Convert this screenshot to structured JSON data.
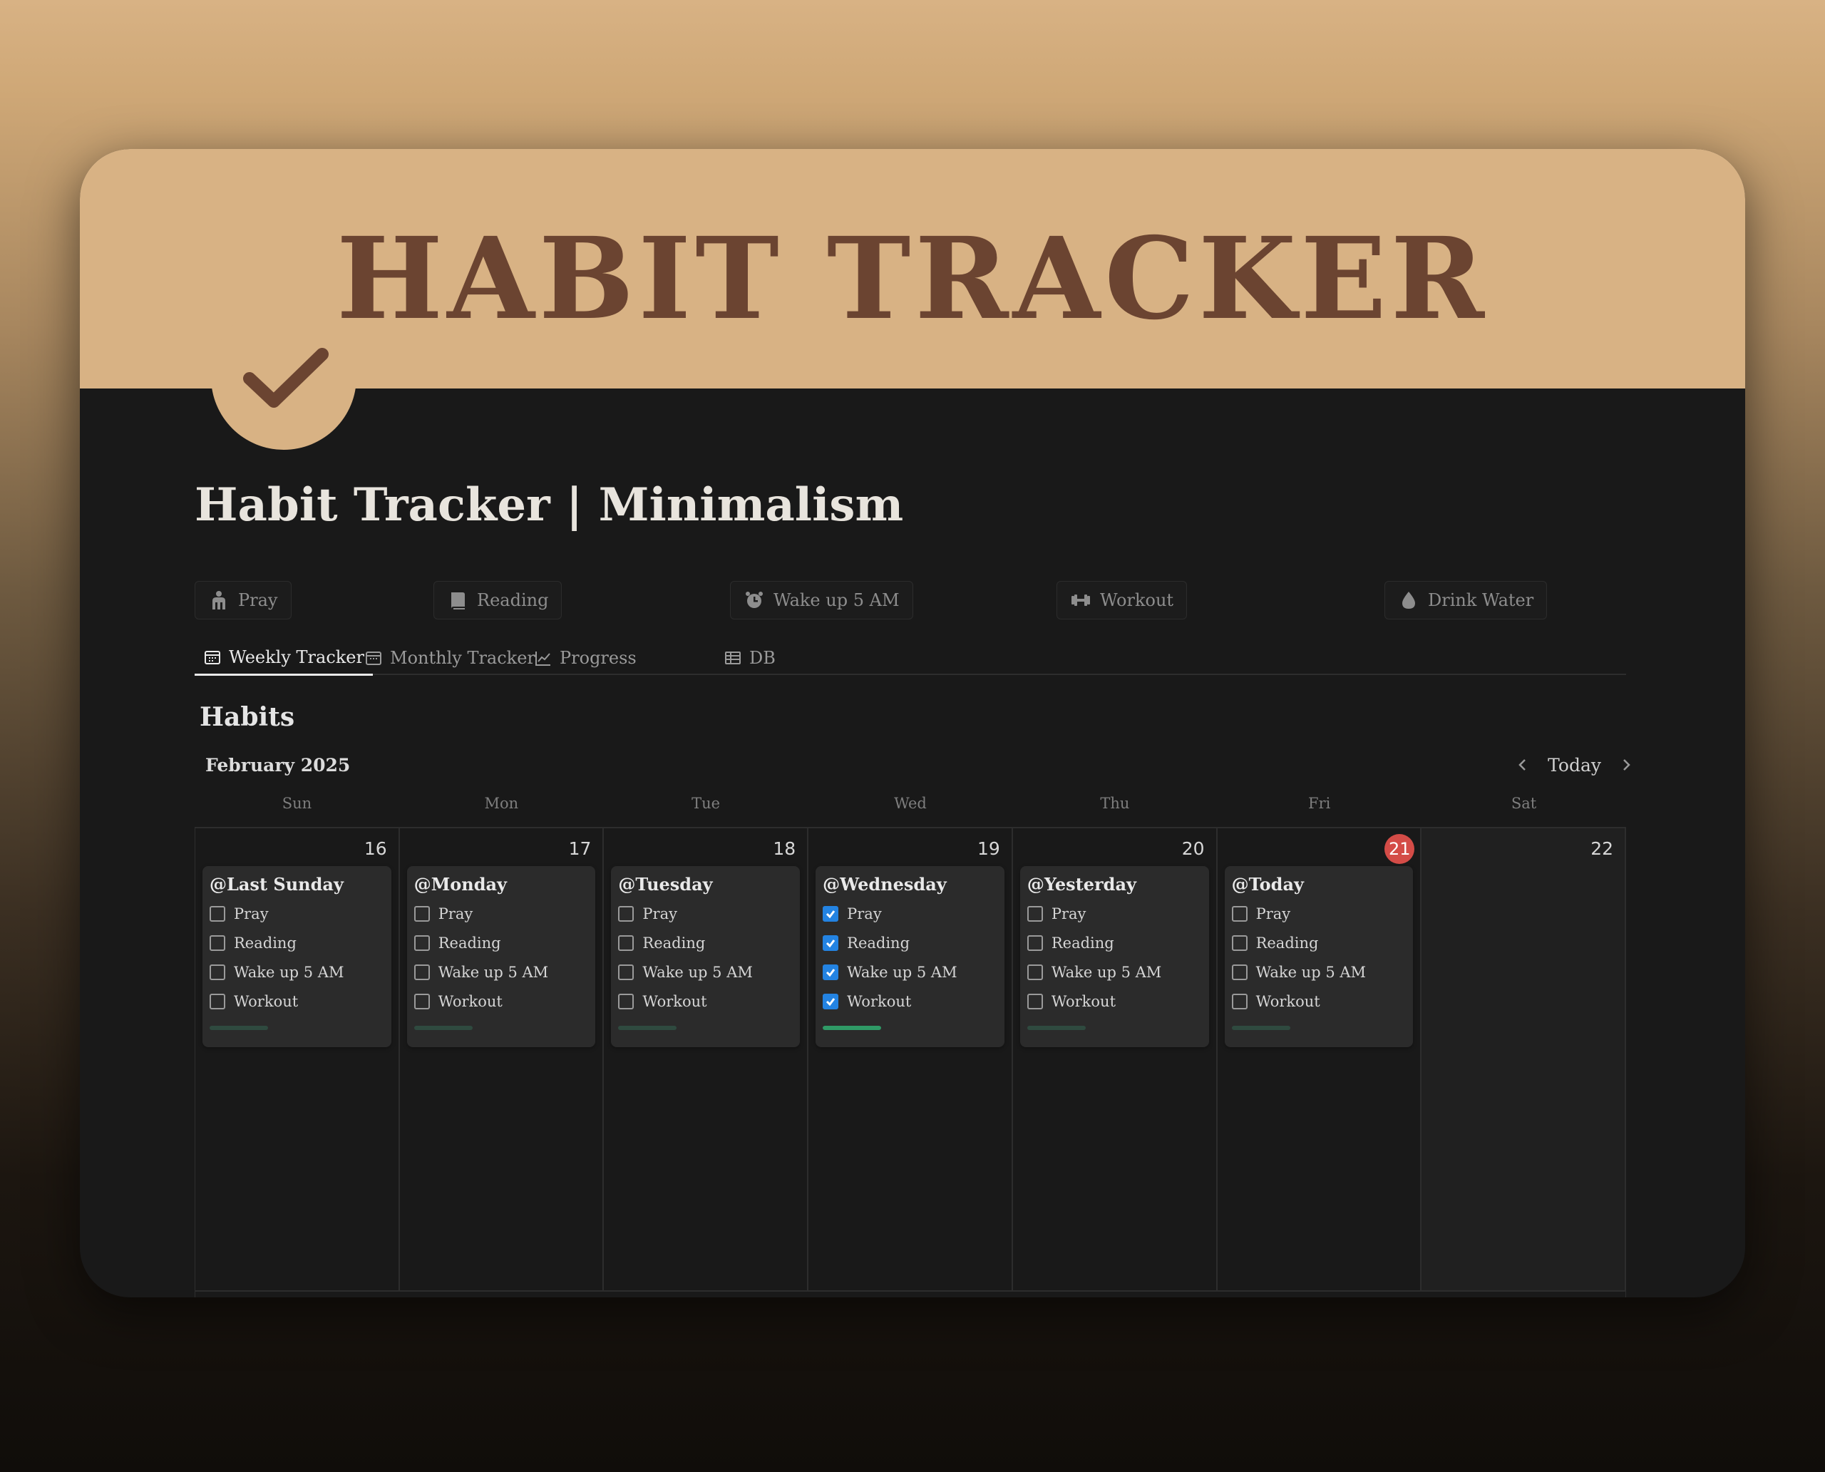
{
  "banner": {
    "title": "HABIT TRACKER"
  },
  "page": {
    "title": "Habit Tracker | Minimalism"
  },
  "habit_buttons": [
    {
      "label": "Pray",
      "icon": "pray-icon"
    },
    {
      "label": "Reading",
      "icon": "book-icon"
    },
    {
      "label": "Wake up 5 AM",
      "icon": "alarm-clock-icon"
    },
    {
      "label": "Workout",
      "icon": "dumbbell-icon"
    },
    {
      "label": "Drink Water",
      "icon": "water-drop-icon"
    }
  ],
  "tabs": [
    {
      "label": "Weekly Tracker",
      "icon": "calendar-icon",
      "active": true
    },
    {
      "label": "Monthly Tracker",
      "icon": "calendar-icon",
      "active": false
    },
    {
      "label": "Progress",
      "icon": "chart-icon",
      "active": false
    },
    {
      "label": "DB",
      "icon": "table-icon",
      "active": false
    }
  ],
  "section": {
    "title": "Habits"
  },
  "calendar": {
    "month": "February 2025",
    "today_label": "Today",
    "weekdays": [
      "Sun",
      "Mon",
      "Tue",
      "Wed",
      "Thu",
      "Fri",
      "Sat"
    ],
    "days": [
      {
        "num": "16",
        "title": "@Last Sunday",
        "habits": [
          false,
          false,
          false,
          false
        ],
        "progress": 0
      },
      {
        "num": "17",
        "title": "@Monday",
        "habits": [
          false,
          false,
          false,
          false
        ],
        "progress": 0
      },
      {
        "num": "18",
        "title": "@Tuesday",
        "habits": [
          false,
          false,
          false,
          false
        ],
        "progress": 0
      },
      {
        "num": "19",
        "title": "@Wednesday",
        "habits": [
          true,
          true,
          true,
          true
        ],
        "progress": 1
      },
      {
        "num": "20",
        "title": "@Yesterday",
        "habits": [
          false,
          false,
          false,
          false
        ],
        "progress": 0
      },
      {
        "num": "21",
        "title": "@Today",
        "habits": [
          false,
          false,
          false,
          false
        ],
        "progress": 0,
        "is_today": true
      },
      {
        "num": "22"
      }
    ],
    "habit_names": [
      "Pray",
      "Reading",
      "Wake up 5 AM",
      "Workout"
    ]
  },
  "colors": {
    "accent_banner": "#d8b284",
    "title_brown": "#6b4431",
    "checkbox_on": "#2383e2",
    "progress": "#2f9a66",
    "today_badge": "#d44c47"
  }
}
